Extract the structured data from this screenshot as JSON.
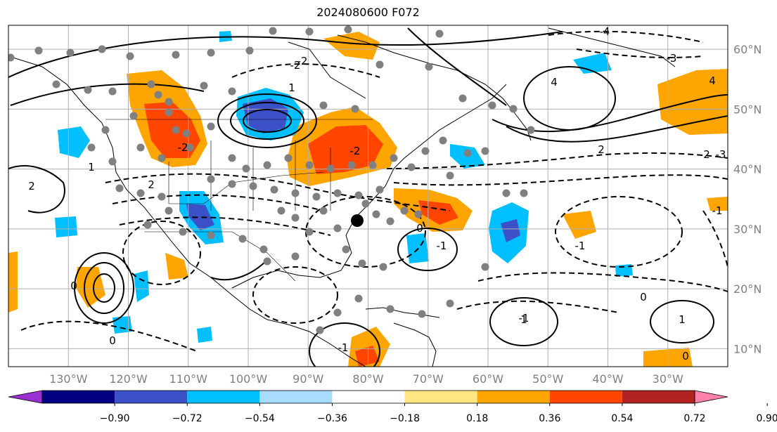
{
  "title": "2024080600 F072",
  "map": {
    "lon_range": [
      -140,
      -20
    ],
    "lat_range": [
      7,
      64
    ],
    "lat_labels": [
      "10°N",
      "20°N",
      "30°N",
      "40°N",
      "50°N",
      "60°N"
    ],
    "lon_labels": [
      "130°W",
      "120°W",
      "110°W",
      "100°W",
      "90°W",
      "80°W",
      "70°W",
      "60°W",
      "50°W",
      "40°W",
      "30°W"
    ],
    "contour_labels": [
      "2",
      "2",
      "4",
      "2",
      "1",
      "0",
      "-2",
      "-2",
      "-1",
      "0",
      "1",
      "-1",
      "0",
      "1",
      "-1",
      "0",
      "2",
      "4",
      "-2",
      "-3",
      "-4",
      "-2",
      "-3",
      "-1",
      "0",
      "-1",
      "1"
    ],
    "colors": {
      "land": "#000000",
      "grid": "#b0b0b0",
      "dot": "#808080",
      "marker": "#000000"
    }
  },
  "colorbar": {
    "ticks": [
      "−0.90",
      "−0.72",
      "−0.54",
      "−0.36",
      "−0.18",
      "0.18",
      "0.36",
      "0.54",
      "0.72",
      "0.90"
    ],
    "colors": [
      "#9b30d0",
      "#000080",
      "#3c50c8",
      "#00bfff",
      "#a8dcff",
      "#ffffff",
      "#ffe680",
      "#ffa500",
      "#ff4500",
      "#b22222",
      "#ff80aa"
    ]
  }
}
